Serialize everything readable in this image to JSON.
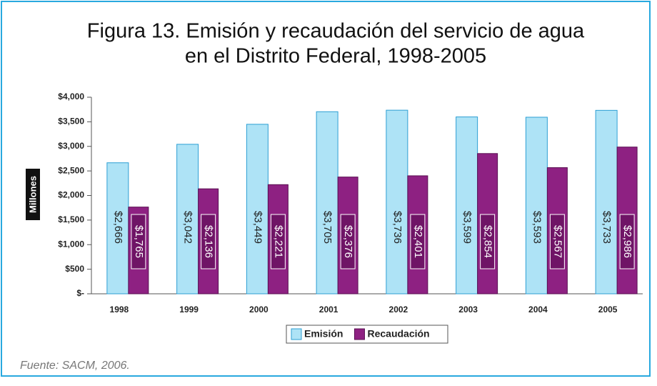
{
  "chart_data": {
    "type": "bar",
    "title": [
      "Figura 13. Emisión y recaudación del servicio de agua",
      "en el Distrito Federal, 1998-2005"
    ],
    "y_label": "Millones",
    "categories": [
      "1998",
      "1999",
      "2000",
      "2001",
      "2002",
      "2003",
      "2004",
      "2005"
    ],
    "series": [
      {
        "name": "Emisión",
        "color": "#aee3f6",
        "values": [
          2666,
          3042,
          3449,
          3705,
          3736,
          3599,
          3593,
          3733
        ],
        "value_labels": [
          "$2,666",
          "$3,042",
          "$3,449",
          "$3,705",
          "$3,736",
          "$3,599",
          "$3,593",
          "$3,733"
        ]
      },
      {
        "name": "Recaudación",
        "color": "#8e2182",
        "values": [
          1765,
          2136,
          2221,
          2376,
          2401,
          2854,
          2567,
          2986
        ],
        "value_labels": [
          "$1,765",
          "$2,136",
          "$2,221",
          "$2,376",
          "$2,401",
          "$2,854",
          "$2,567",
          "$2,986"
        ]
      }
    ],
    "ylim": [
      0,
      4000
    ],
    "yticks": [
      {
        "value": 0,
        "label": "$-"
      },
      {
        "value": 500,
        "label": "$500"
      },
      {
        "value": 1000,
        "label": "$1,000"
      },
      {
        "value": 1500,
        "label": "$1,500"
      },
      {
        "value": 2000,
        "label": "$2,000"
      },
      {
        "value": 2500,
        "label": "$2,500"
      },
      {
        "value": 3000,
        "label": "$3,000"
      },
      {
        "value": 3500,
        "label": "$3,500"
      },
      {
        "value": 4000,
        "label": "$4,000"
      }
    ],
    "legend": "bottom",
    "source": "Fuente: SACM, 2006."
  }
}
